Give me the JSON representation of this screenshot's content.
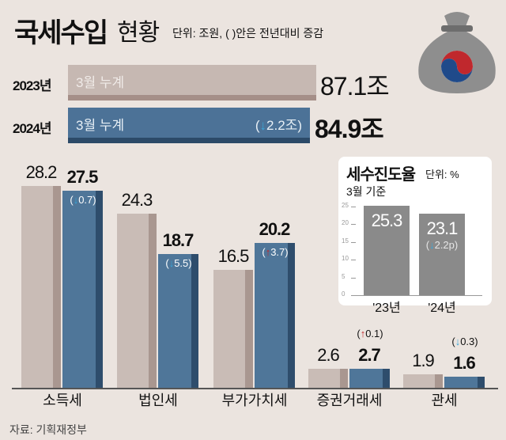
{
  "header": {
    "title": "국세수입",
    "title2": "현황",
    "unit": "단위: 조원, ( )안은 전년대비 증감"
  },
  "totals": [
    {
      "year": "2023년",
      "label": "3월 누계",
      "value": "87.1조",
      "share": 1.0
    },
    {
      "year": "2024년",
      "label": "3월 누계",
      "value": "84.9조",
      "change_arrow": "down",
      "change": "2.2조",
      "share": 0.975
    }
  ],
  "colors": {
    "y2023": "#c6b8b2",
    "y2024": "#4c7297",
    "up": "#c0282d",
    "down": "#3aa6d8"
  },
  "source": "자료: 기획재정부",
  "chart_data": [
    {
      "type": "bar",
      "title": "국세수입 현황",
      "ylabel": "조원",
      "categories": [
        "소득세",
        "법인세",
        "부가가치세",
        "증권거래세",
        "관세"
      ],
      "series": [
        {
          "name": "2023년",
          "values": [
            28.2,
            24.3,
            16.5,
            2.6,
            1.9
          ]
        },
        {
          "name": "2024년",
          "values": [
            27.5,
            18.7,
            20.2,
            2.7,
            1.6
          ]
        }
      ],
      "changes": [
        {
          "dir": "down",
          "text": "0.7"
        },
        {
          "dir": "down",
          "text": "5.5"
        },
        {
          "dir": "up",
          "text": "3.7"
        },
        {
          "dir": "up",
          "text": "0.1"
        },
        {
          "dir": "down",
          "text": "0.3"
        }
      ]
    },
    {
      "type": "bar",
      "title": "세수진도율",
      "unit": "단위: %",
      "subtitle": "3월 기준",
      "categories": [
        "'23년",
        "'24년"
      ],
      "values": [
        25.3,
        23.1
      ],
      "ylim": [
        0,
        25
      ],
      "yticks": [
        0,
        5,
        10,
        15,
        20,
        25
      ],
      "change": {
        "dir": "down",
        "text": "2.2p"
      }
    }
  ]
}
